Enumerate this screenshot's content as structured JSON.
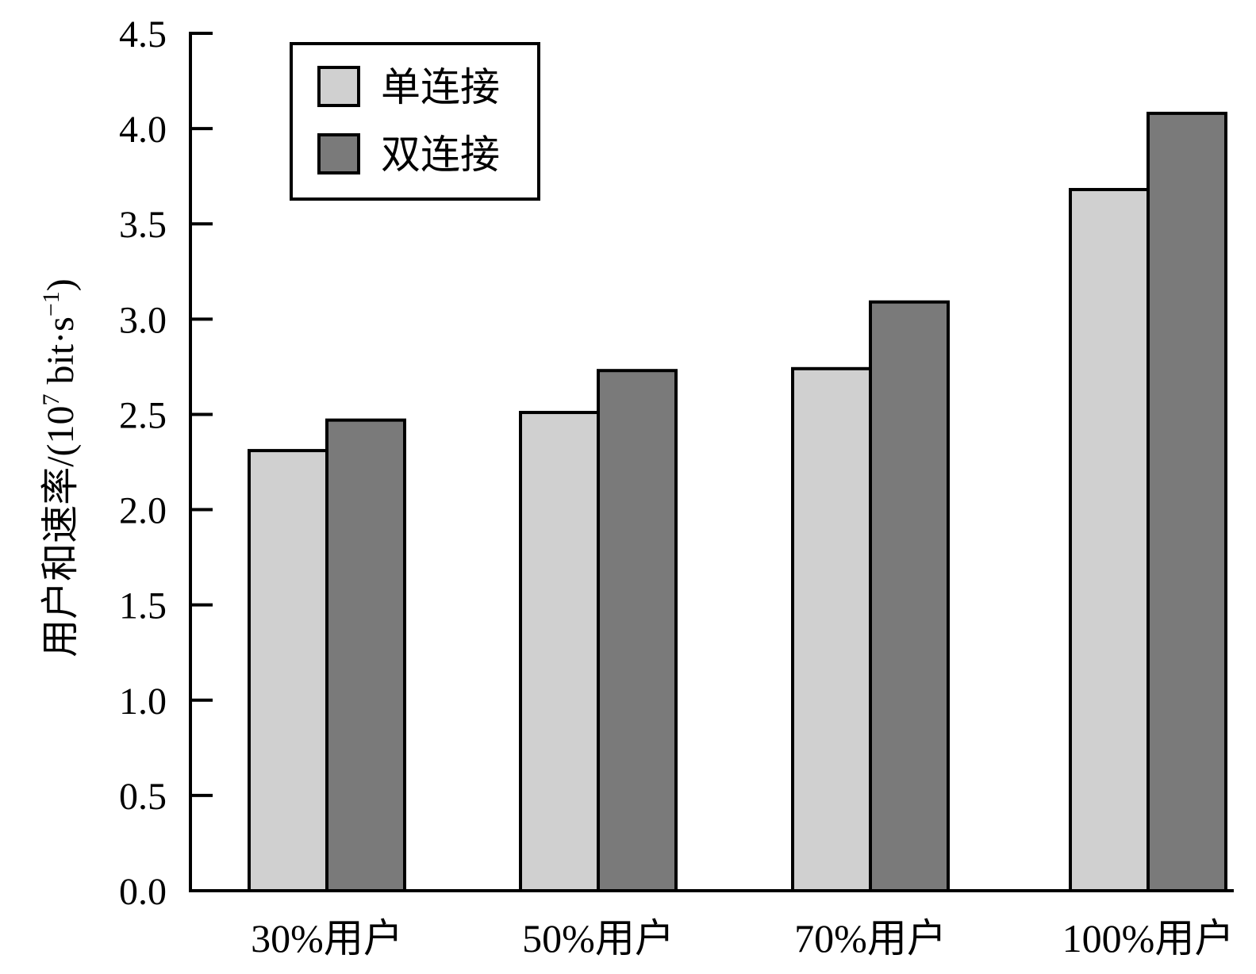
{
  "chart_data": {
    "type": "bar",
    "categories": [
      "30%用户",
      "50%用户",
      "70%用户",
      "100%用户"
    ],
    "series": [
      {
        "name": "单连接",
        "values": [
          2.31,
          2.51,
          2.74,
          3.68
        ],
        "color": "#d0d0d0"
      },
      {
        "name": "双连接",
        "values": [
          2.47,
          2.73,
          3.09,
          4.08
        ],
        "color": "#7a7a7a"
      }
    ],
    "title": "",
    "xlabel": "",
    "ylabel": {
      "main": "用户和速率/(10",
      "exp": "7",
      "unit": " bit·s",
      "unit_exp": "−1",
      "close": ")"
    },
    "ylim": [
      0,
      4.5
    ],
    "yticks": [
      "0.0",
      "0.5",
      "1.0",
      "1.5",
      "2.0",
      "2.5",
      "3.0",
      "3.5",
      "4.0",
      "4.5"
    ],
    "grid": false,
    "legend_position": "top-left"
  }
}
